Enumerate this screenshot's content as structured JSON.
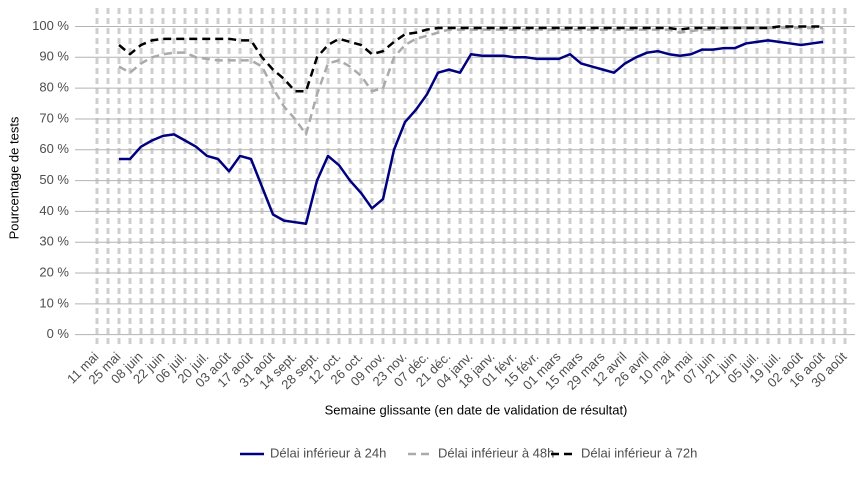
{
  "chart_data": {
    "type": "line",
    "x_label": "Semaine glissante (en date de validation de résultat)",
    "y_label": "Pourcentage de tests",
    "categories": [
      "11 mai",
      null,
      "25 mai",
      null,
      "08 juin",
      null,
      "22 juin",
      null,
      "06 juil.",
      null,
      "20 juil.",
      null,
      "03 août",
      null,
      "17 août",
      null,
      "31 août",
      null,
      "14 sept.",
      null,
      "28 sept.",
      null,
      "12 oct.",
      null,
      "26 oct.",
      null,
      "09 nov.",
      null,
      "23 nov.",
      null,
      "07 déc.",
      null,
      "21 déc.",
      null,
      "04 janv.",
      null,
      "18 janv.",
      null,
      "01 févr.",
      null,
      "15 févr.",
      null,
      "01 mars",
      null,
      "15 mars",
      null,
      "29 mars",
      null,
      "12 avril",
      null,
      "26 avril",
      null,
      "10 mai",
      null,
      "24 mai",
      null,
      "07 juin",
      null,
      "21 juin",
      null,
      "05 juil.",
      null,
      "19 juil.",
      null,
      "02 août",
      null,
      "16 août",
      null,
      "30 août"
    ],
    "series": [
      {
        "name": "Délai inférieur à 24h",
        "color": "#000080",
        "dash": "solid",
        "values": [
          null,
          null,
          57,
          57,
          61,
          63,
          64.5,
          65,
          63,
          61,
          58,
          57,
          53,
          58,
          57,
          48,
          39,
          37,
          36.5,
          36,
          50,
          58,
          55,
          50,
          46,
          41,
          44,
          60,
          69,
          73,
          78,
          85,
          86,
          85,
          91,
          90.5,
          90.5,
          90.5,
          90,
          90,
          89.5,
          89.5,
          89.5,
          91,
          88,
          87,
          86,
          85,
          88,
          90,
          91.5,
          92,
          91,
          90.5,
          91,
          92.5,
          92.5,
          93,
          93,
          94.5,
          95,
          95.5,
          95,
          94.5,
          94,
          94.5,
          95,
          null,
          null
        ]
      },
      {
        "name": "Délai inférieur à 48h",
        "color": "#aaaaaa",
        "dash": "dashed",
        "values": [
          null,
          null,
          87,
          85,
          88,
          90,
          91,
          91.5,
          91.5,
          90,
          89.5,
          89,
          89,
          89,
          89,
          87,
          80,
          74,
          70,
          65,
          78,
          88,
          89,
          87,
          84,
          79,
          80,
          90,
          94,
          96,
          97,
          98,
          99,
          99,
          99,
          99,
          99,
          99,
          99,
          99,
          99,
          99,
          99,
          99,
          99,
          99,
          99,
          99,
          99,
          99,
          99,
          99,
          99,
          98,
          98.5,
          99,
          99,
          99.5,
          99.5,
          99.5,
          99.5,
          99.5,
          99.5,
          99.5,
          99.5,
          99.5,
          99.5,
          null,
          null
        ]
      },
      {
        "name": "Délai inférieur à 72h",
        "color": "#000000",
        "dash": "dashed",
        "values": [
          null,
          null,
          94,
          91,
          94,
          95.5,
          96,
          96,
          96,
          96,
          96,
          96,
          96,
          95.5,
          95.5,
          90,
          86,
          83,
          79,
          79,
          90,
          94,
          96,
          95,
          94,
          91,
          92,
          95,
          97.5,
          98,
          99,
          99.5,
          99.5,
          99.5,
          99.5,
          99.5,
          99.5,
          99.5,
          99.5,
          99.5,
          99.5,
          99.5,
          99.5,
          99.5,
          99.5,
          99.5,
          99.5,
          99.5,
          99.5,
          99.5,
          99.5,
          99.5,
          99.5,
          99,
          99.5,
          99.5,
          99.5,
          99.5,
          99.5,
          99.5,
          99.5,
          99.5,
          100,
          100,
          100,
          100,
          100,
          null,
          null
        ]
      }
    ],
    "ylim": [
      -4,
      106
    ],
    "yticks": [
      {
        "value": 0,
        "label": "0 %"
      },
      {
        "value": 10,
        "label": "10 %"
      },
      {
        "value": 20,
        "label": "20 %"
      },
      {
        "value": 30,
        "label": "30 %"
      },
      {
        "value": 40,
        "label": "40 %"
      },
      {
        "value": 50,
        "label": "50 %"
      },
      {
        "value": 60,
        "label": "60 %"
      },
      {
        "value": 70,
        "label": "70 %"
      },
      {
        "value": 80,
        "label": "80 %"
      },
      {
        "value": 90,
        "label": "90 %"
      },
      {
        "value": 100,
        "label": "100 %"
      }
    ],
    "grid": true,
    "legend": "bottom"
  }
}
